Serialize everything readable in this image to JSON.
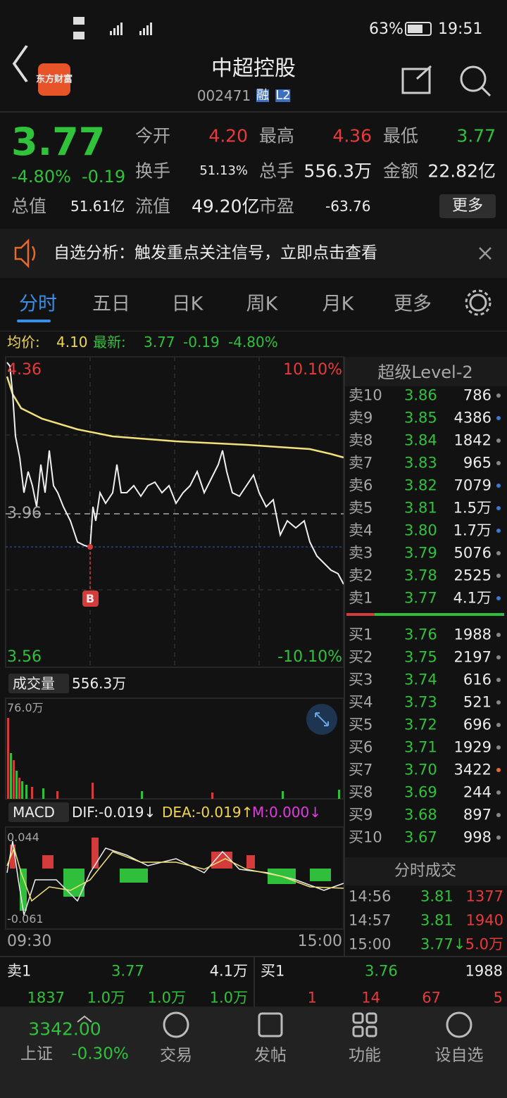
{
  "status": {
    "battery": "63%",
    "time": "19:51"
  },
  "header": {
    "title": "中超控股",
    "code": "002471",
    "tag1": "融",
    "tag2": "L2",
    "logo": "东方财富"
  },
  "quote": {
    "price": "3.77",
    "change_pct": "-4.80%",
    "change": "-0.19",
    "row1": [
      {
        "label": "今开",
        "value": "4.20"
      },
      {
        "label": "最高",
        "value": "4.36"
      },
      {
        "label": "最低",
        "value": "3.77"
      }
    ],
    "row2": [
      {
        "label": "换手",
        "value": "51.13%"
      },
      {
        "label": "总手",
        "value": "556.3万"
      },
      {
        "label": "金额",
        "value": "22.82亿"
      }
    ],
    "row3": [
      {
        "label": "总值",
        "value": "51.61亿"
      },
      {
        "label": "流值",
        "value": "49.20亿"
      },
      {
        "label": "市盈",
        "value": "-63.76"
      }
    ],
    "more": "更多"
  },
  "banner": "自选分析：触发重点关注信号，立即点击查看",
  "tabs": [
    "分时",
    "五日",
    "日K",
    "周K",
    "月K",
    "更多"
  ],
  "summary": {
    "avg_label": "均价:",
    "avg": "4.10",
    "latest_label": "最新:",
    "latest": "3.77",
    "change": "-0.19",
    "pct": "-4.80%"
  },
  "price_chart": {
    "high": "4.36",
    "high_pct": "10.10%",
    "mid": "3.96",
    "low": "3.56",
    "low_pct": "-10.10%",
    "marker": "B"
  },
  "volume": {
    "label": "成交量",
    "total": "556.3万",
    "max": "76.0万"
  },
  "macd": {
    "label": "MACD",
    "dif": "DIF:-0.019↓",
    "dea": "DEA:-0.019↑",
    "m": "M:0.000↓",
    "top": "0.044",
    "bottom": "-0.061"
  },
  "time_axis": [
    "09:30",
    "15:00"
  ],
  "level2": {
    "title": "超级Level-2",
    "asks": [
      {
        "name": "卖10",
        "price": "3.86",
        "vol": "786",
        "dot": "#888888"
      },
      {
        "name": "卖9",
        "price": "3.85",
        "vol": "4386",
        "dot": "#3a7bd5"
      },
      {
        "name": "卖8",
        "price": "3.84",
        "vol": "1842",
        "dot": "#888888"
      },
      {
        "name": "卖7",
        "price": "3.83",
        "vol": "965",
        "dot": "#888888"
      },
      {
        "name": "卖6",
        "price": "3.82",
        "vol": "7079",
        "dot": "#3a7bd5"
      },
      {
        "name": "卖5",
        "price": "3.81",
        "vol": "1.5万",
        "dot": "#3a7bd5"
      },
      {
        "name": "卖4",
        "price": "3.80",
        "vol": "1.7万",
        "dot": "#3a7bd5"
      },
      {
        "name": "卖3",
        "price": "3.79",
        "vol": "5076",
        "dot": "#888888"
      },
      {
        "name": "卖2",
        "price": "3.78",
        "vol": "2525",
        "dot": "#888888"
      },
      {
        "name": "卖1",
        "price": "3.77",
        "vol": "4.1万",
        "dot": "#3a7bd5"
      }
    ],
    "bids": [
      {
        "name": "买1",
        "price": "3.76",
        "vol": "1988",
        "dot": "#888888"
      },
      {
        "name": "买2",
        "price": "3.75",
        "vol": "2197",
        "dot": "#888888"
      },
      {
        "name": "买3",
        "price": "3.74",
        "vol": "616",
        "dot": "#888888"
      },
      {
        "name": "买4",
        "price": "3.73",
        "vol": "521",
        "dot": "#888888"
      },
      {
        "name": "买5",
        "price": "3.72",
        "vol": "696",
        "dot": "#888888"
      },
      {
        "name": "买6",
        "price": "3.71",
        "vol": "1929",
        "dot": "#888888"
      },
      {
        "name": "买7",
        "price": "3.70",
        "vol": "3422",
        "dot": "#e8692a"
      },
      {
        "name": "买8",
        "price": "3.69",
        "vol": "244",
        "dot": "#888888"
      },
      {
        "name": "买9",
        "price": "3.68",
        "vol": "897",
        "dot": "#888888"
      },
      {
        "name": "买10",
        "price": "3.67",
        "vol": "998",
        "dot": "#888888"
      }
    ]
  },
  "trades": {
    "title": "分时成交",
    "rows": [
      {
        "time": "14:56",
        "price": "3.81",
        "vol": "1377"
      },
      {
        "time": "14:57",
        "price": "3.81",
        "vol": "1940"
      },
      {
        "time": "15:00",
        "price": "3.77↓",
        "vol": "5.0万"
      }
    ]
  },
  "bottom": {
    "left": {
      "name": "卖1",
      "price": "3.77",
      "vol": "4.1万",
      "counts": [
        "1837",
        "1.0万",
        "1.0万",
        "1.0万"
      ]
    },
    "right": {
      "name": "买1",
      "price": "3.76",
      "vol": "1988",
      "counts": [
        "1",
        "14",
        "67",
        "5"
      ]
    }
  },
  "nav": {
    "index_value": "3342.00",
    "index_name": "上证",
    "index_change": "-0.30%",
    "items": [
      "交易",
      "发帖",
      "功能",
      "设自选"
    ]
  }
}
